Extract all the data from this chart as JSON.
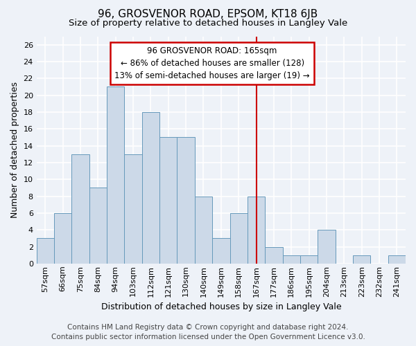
{
  "title": "96, GROSVENOR ROAD, EPSOM, KT18 6JB",
  "subtitle": "Size of property relative to detached houses in Langley Vale",
  "xlabel": "Distribution of detached houses by size in Langley Vale",
  "ylabel": "Number of detached properties",
  "footer_line1": "Contains HM Land Registry data © Crown copyright and database right 2024.",
  "footer_line2": "Contains public sector information licensed under the Open Government Licence v3.0.",
  "categories": [
    "57sqm",
    "66sqm",
    "75sqm",
    "84sqm",
    "94sqm",
    "103sqm",
    "112sqm",
    "121sqm",
    "130sqm",
    "140sqm",
    "149sqm",
    "158sqm",
    "167sqm",
    "177sqm",
    "186sqm",
    "195sqm",
    "204sqm",
    "213sqm",
    "223sqm",
    "232sqm",
    "241sqm"
  ],
  "values": [
    3,
    6,
    13,
    9,
    21,
    13,
    18,
    15,
    15,
    8,
    3,
    6,
    8,
    2,
    1,
    1,
    4,
    0,
    1,
    0,
    1
  ],
  "bar_color": "#ccd9e8",
  "bar_edge_color": "#6699bb",
  "background_color": "#eef2f8",
  "grid_color": "#ffffff",
  "annotation_text_line1": "96 GROSVENOR ROAD: 165sqm",
  "annotation_text_line2": "← 86% of detached houses are smaller (128)",
  "annotation_text_line3": "13% of semi-detached houses are larger (19) →",
  "annotation_box_facecolor": "#ffffff",
  "annotation_border_color": "#cc0000",
  "vline_x_index": 12,
  "vline_color": "#cc0000",
  "ylim": [
    0,
    27
  ],
  "yticks": [
    0,
    2,
    4,
    6,
    8,
    10,
    12,
    14,
    16,
    18,
    20,
    22,
    24,
    26
  ],
  "title_fontsize": 11,
  "subtitle_fontsize": 9.5,
  "axis_label_fontsize": 9,
  "tick_fontsize": 8,
  "annotation_fontsize": 8.5,
  "footer_fontsize": 7.5
}
